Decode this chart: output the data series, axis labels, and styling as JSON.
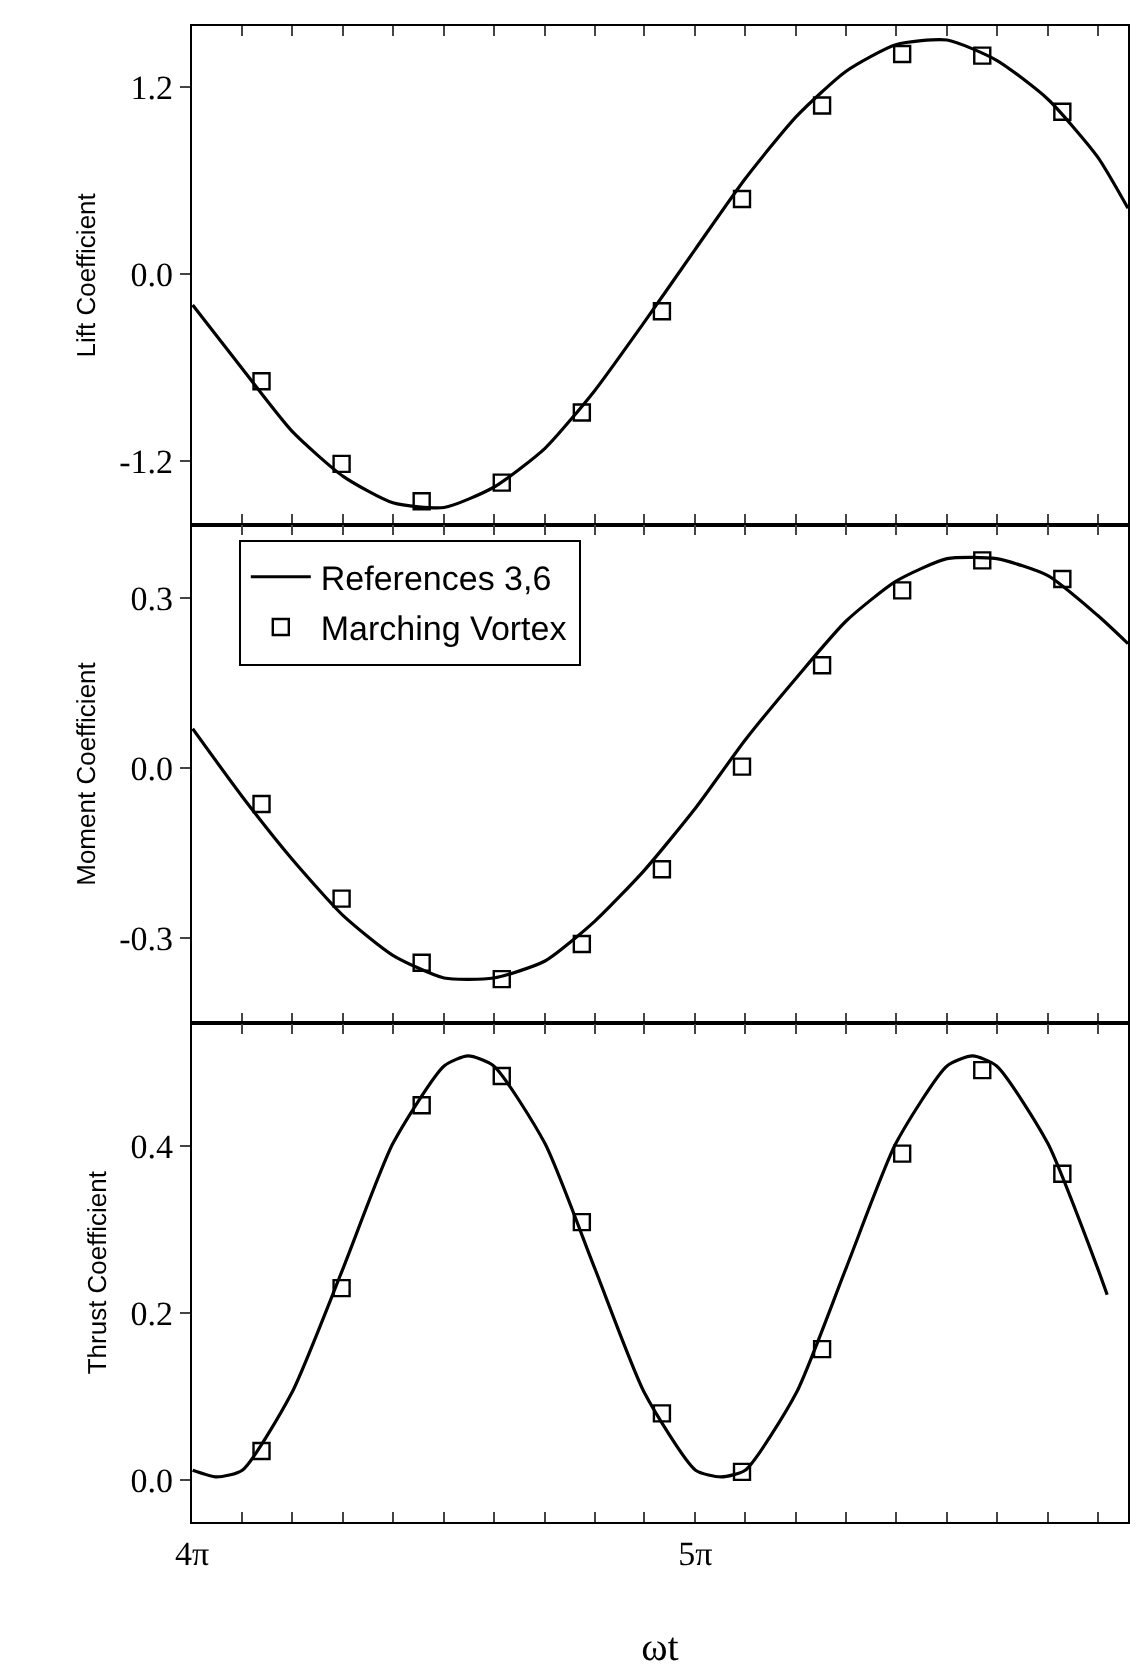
{
  "chart_data": [
    {
      "type": "line",
      "ylabel": "Lift Coefficient",
      "xlim": [
        12.566,
        18.41
      ],
      "ylim": [
        -1.61,
        1.59
      ],
      "xticks": [
        {
          "value": 12.566,
          "label": null
        },
        {
          "value": 12.88,
          "label": null
        },
        {
          "value": 13.19,
          "label": null
        },
        {
          "value": 13.51,
          "label": null
        },
        {
          "value": 13.82,
          "label": null
        },
        {
          "value": 14.137,
          "label": null
        },
        {
          "value": 14.45,
          "label": null
        },
        {
          "value": 14.77,
          "label": null
        },
        {
          "value": 15.08,
          "label": null
        },
        {
          "value": 15.39,
          "label": null
        },
        {
          "value": 15.708,
          "label": null
        },
        {
          "value": 16.02,
          "label": null
        },
        {
          "value": 16.34,
          "label": null
        },
        {
          "value": 16.65,
          "label": null
        },
        {
          "value": 16.96,
          "label": null
        },
        {
          "value": 17.279,
          "label": null
        },
        {
          "value": 17.59,
          "label": null
        },
        {
          "value": 17.91,
          "label": null
        },
        {
          "value": 18.22,
          "label": null
        }
      ],
      "yticks": [
        {
          "value": -1.2,
          "label": "-1.2"
        },
        {
          "value": 0,
          "label": "0.0"
        },
        {
          "value": 1.2,
          "label": "1.2"
        }
      ],
      "tick_labels": "y",
      "grid": false,
      "legend": false,
      "series": [
        {
          "color": "#000000",
          "line_style": "solid",
          "marker": "none",
          "x": [
            12.57,
            12.88,
            13.19,
            13.51,
            13.82,
            14.14,
            14.45,
            14.77,
            15.08,
            15.39,
            15.71,
            16.02,
            16.34,
            16.65,
            16.96,
            17.28,
            17.59,
            17.91,
            18.22,
            18.41
          ],
          "values": [
            -0.2,
            -0.61,
            -1.01,
            -1.3,
            -1.47,
            -1.5,
            -1.37,
            -1.12,
            -0.75,
            -0.31,
            0.16,
            0.61,
            1.01,
            1.3,
            1.47,
            1.5,
            1.37,
            1.12,
            0.75,
            0.42
          ]
        },
        {
          "type": "scatter",
          "color": "#000000",
          "marker": "square",
          "x": [
            13.0,
            13.5,
            14.0,
            14.5,
            15.0,
            15.5,
            16.0,
            16.5,
            17.0,
            17.5,
            18.0
          ],
          "values": [
            -0.69,
            -1.22,
            -1.46,
            -1.34,
            -0.89,
            -0.24,
            0.48,
            1.08,
            1.41,
            1.4,
            1.04
          ]
        }
      ]
    },
    {
      "type": "line",
      "ylabel": "Moment Coefficient",
      "xlim": [
        12.566,
        18.41
      ],
      "ylim": [
        -0.45,
        0.43
      ],
      "xticks": [
        {
          "value": 12.566,
          "label": null
        },
        {
          "value": 12.88,
          "label": null
        },
        {
          "value": 13.19,
          "label": null
        },
        {
          "value": 13.51,
          "label": null
        },
        {
          "value": 13.82,
          "label": null
        },
        {
          "value": 14.137,
          "label": null
        },
        {
          "value": 14.45,
          "label": null
        },
        {
          "value": 14.77,
          "label": null
        },
        {
          "value": 15.08,
          "label": null
        },
        {
          "value": 15.39,
          "label": null
        },
        {
          "value": 15.708,
          "label": null
        },
        {
          "value": 16.02,
          "label": null
        },
        {
          "value": 16.34,
          "label": null
        },
        {
          "value": 16.65,
          "label": null
        },
        {
          "value": 16.96,
          "label": null
        },
        {
          "value": 17.279,
          "label": null
        },
        {
          "value": 17.59,
          "label": null
        },
        {
          "value": 17.91,
          "label": null
        },
        {
          "value": 18.22,
          "label": null
        }
      ],
      "yticks": [
        {
          "value": -0.3,
          "label": "-0.3"
        },
        {
          "value": 0,
          "label": "0.0"
        },
        {
          "value": 0.3,
          "label": "0.3"
        }
      ],
      "tick_labels": "y",
      "grid": false,
      "legend": "top left",
      "series": [
        {
          "name": "References 3,6",
          "color": "#000000",
          "line_style": "solid",
          "marker": "none",
          "x": [
            12.57,
            12.88,
            13.19,
            13.51,
            13.82,
            14.14,
            14.45,
            14.77,
            15.08,
            15.39,
            15.71,
            16.02,
            16.34,
            16.65,
            16.96,
            17.28,
            17.59,
            17.91,
            18.22,
            18.41
          ],
          "values": [
            0.07,
            -0.05,
            -0.16,
            -0.26,
            -0.33,
            -0.37,
            -0.37,
            -0.34,
            -0.27,
            -0.18,
            -0.07,
            0.05,
            0.16,
            0.26,
            0.33,
            0.37,
            0.37,
            0.34,
            0.27,
            0.22
          ]
        },
        {
          "type": "scatter",
          "name": "Marching Vortex",
          "color": "#000000",
          "marker": "square",
          "x": [
            13.0,
            13.5,
            14.0,
            14.5,
            15.0,
            15.5,
            16.0,
            16.5,
            17.0,
            17.5,
            18.0
          ],
          "values": [
            -0.063,
            -0.23,
            -0.343,
            -0.372,
            -0.31,
            -0.178,
            0.003,
            0.182,
            0.314,
            0.367,
            0.334
          ]
        }
      ]
    },
    {
      "type": "line",
      "ylabel": "Thrust Coefficient",
      "xlabel": "ωt",
      "xlim": [
        12.566,
        18.41
      ],
      "ylim": [
        -0.05,
        0.547
      ],
      "xticks": [
        {
          "value": 12.566,
          "label": "4π"
        },
        {
          "value": 12.88,
          "label": null
        },
        {
          "value": 13.19,
          "label": null
        },
        {
          "value": 13.51,
          "label": null
        },
        {
          "value": 13.82,
          "label": null
        },
        {
          "value": 14.137,
          "label": null
        },
        {
          "value": 14.45,
          "label": null
        },
        {
          "value": 14.77,
          "label": null
        },
        {
          "value": 15.08,
          "label": null
        },
        {
          "value": 15.39,
          "label": null
        },
        {
          "value": 15.708,
          "label": "5π"
        },
        {
          "value": 16.02,
          "label": null
        },
        {
          "value": 16.34,
          "label": null
        },
        {
          "value": 16.65,
          "label": null
        },
        {
          "value": 16.96,
          "label": null
        },
        {
          "value": 17.279,
          "label": null
        },
        {
          "value": 17.59,
          "label": null
        },
        {
          "value": 17.91,
          "label": null
        },
        {
          "value": 18.22,
          "label": null
        }
      ],
      "yticks": [
        {
          "value": 0,
          "label": "0.0"
        },
        {
          "value": 0.2,
          "label": "0.2"
        },
        {
          "value": 0.4,
          "label": "0.4"
        }
      ],
      "grid": false,
      "legend": false,
      "series": [
        {
          "color": "#000000",
          "line_style": "solid",
          "marker": "none",
          "x": [
            12.57,
            12.72,
            12.88,
            13.19,
            13.51,
            13.82,
            14.14,
            14.29,
            14.45,
            14.77,
            15.08,
            15.39,
            15.71,
            15.87,
            16.02,
            16.34,
            16.65,
            16.96,
            17.28,
            17.44,
            17.59,
            17.91,
            18.22,
            18.28
          ],
          "values": [
            0.012,
            0.004,
            0.012,
            0.105,
            0.254,
            0.403,
            0.496,
            0.508,
            0.496,
            0.403,
            0.254,
            0.105,
            0.012,
            0.004,
            0.012,
            0.105,
            0.254,
            0.403,
            0.496,
            0.508,
            0.496,
            0.403,
            0.254,
            0.222
          ]
        },
        {
          "type": "scatter",
          "color": "#000000",
          "marker": "square",
          "x": [
            13.0,
            13.5,
            14.0,
            14.5,
            15.0,
            15.5,
            16.0,
            16.5,
            17.0,
            17.5,
            18.0
          ],
          "values": [
            0.035,
            0.23,
            0.449,
            0.484,
            0.309,
            0.08,
            0.01,
            0.157,
            0.391,
            0.491,
            0.367
          ]
        }
      ]
    }
  ]
}
